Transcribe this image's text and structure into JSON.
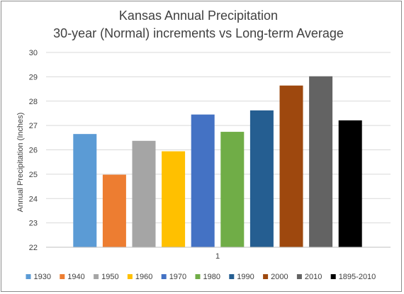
{
  "chart_data": {
    "type": "bar",
    "title_line1": "Kansas Annual Precipitation",
    "title_line2": "30-year (Normal) increments vs Long-term Average",
    "ylabel": "Annual Precipitation (Inches)",
    "xlabel": "",
    "categories": [
      "1"
    ],
    "ylim": [
      22,
      30
    ],
    "yticks": [
      22,
      23,
      24,
      25,
      26,
      27,
      28,
      29,
      30
    ],
    "grid": true,
    "legend_position": "bottom",
    "series": [
      {
        "name": "1930",
        "value": 26.65,
        "color": "#5b9bd5"
      },
      {
        "name": "1940",
        "value": 24.98,
        "color": "#ed7d31"
      },
      {
        "name": "1950",
        "value": 26.37,
        "color": "#a5a5a5"
      },
      {
        "name": "1960",
        "value": 25.94,
        "color": "#ffc000"
      },
      {
        "name": "1970",
        "value": 27.45,
        "color": "#4472c4"
      },
      {
        "name": "1980",
        "value": 26.74,
        "color": "#70ad47"
      },
      {
        "name": "1990",
        "value": 27.62,
        "color": "#255e91"
      },
      {
        "name": "2000",
        "value": 28.64,
        "color": "#9e480e"
      },
      {
        "name": "2010",
        "value": 29.02,
        "color": "#636363"
      },
      {
        "name": "1895-2010",
        "value": 27.21,
        "color": "#000000"
      }
    ]
  }
}
